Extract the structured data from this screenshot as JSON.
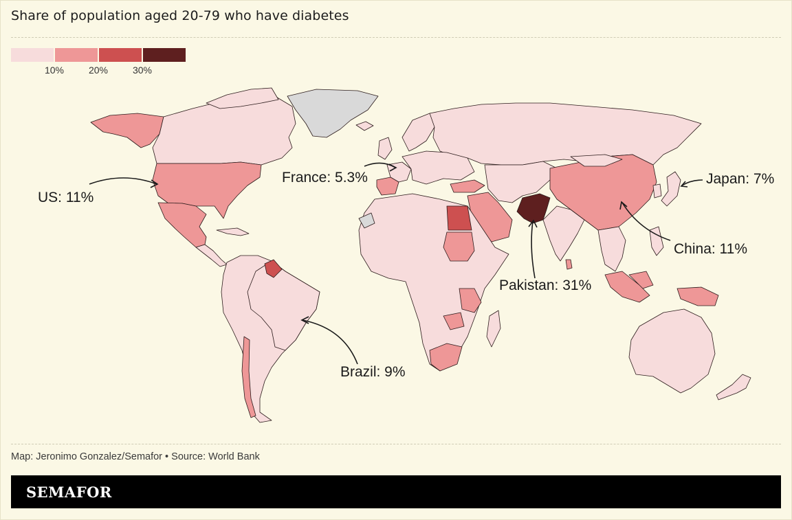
{
  "title": "Share of population aged 20-79 who have diabetes",
  "legend": {
    "bins": [
      {
        "color": "#f7dcdc"
      },
      {
        "color": "#ee9797"
      },
      {
        "color": "#cd5050"
      },
      {
        "color": "#5e1f1f"
      }
    ],
    "tick_labels": [
      "10%",
      "20%",
      "30%"
    ]
  },
  "colors": {
    "no_data": "#d9d9d9",
    "background": "#fbf8e5",
    "border": "#2a1a1a"
  },
  "annotations": {
    "us": "US: 11%",
    "france": "France: 5.3%",
    "japan": "Japan: 7%",
    "china": "China: 11%",
    "pakistan": "Pakistan: 31%",
    "brazil": "Brazil: 9%"
  },
  "map_data": {
    "highlighted": [
      {
        "country": "US",
        "value_pct": 11
      },
      {
        "country": "France",
        "value_pct": 5.3
      },
      {
        "country": "Japan",
        "value_pct": 7
      },
      {
        "country": "China",
        "value_pct": 11
      },
      {
        "country": "Pakistan",
        "value_pct": 31
      },
      {
        "country": "Brazil",
        "value_pct": 9
      }
    ]
  },
  "footer": {
    "credit": "Map: Jeronimo Gonzalez/Semafor • Source: World Bank",
    "brand": "SEMAFOR"
  }
}
